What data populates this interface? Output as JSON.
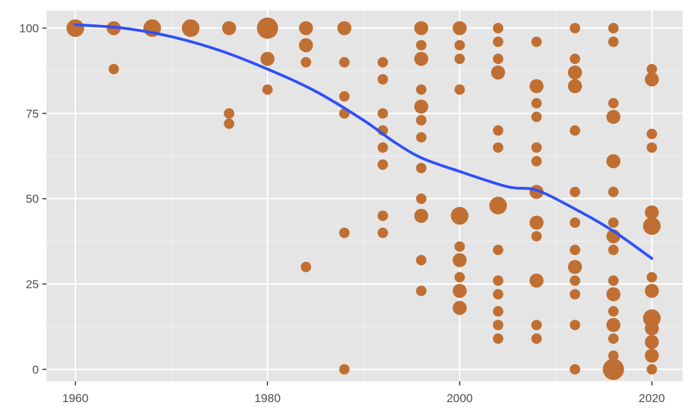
{
  "chart_data": {
    "type": "scatter",
    "title": "",
    "xlabel": "",
    "ylabel": "",
    "xlim": [
      1957,
      2023.2
    ],
    "ylim": [
      -3.5,
      105.2
    ],
    "x_ticks": [
      1960,
      1980,
      2000,
      2020
    ],
    "x_minor_ticks": [
      1970,
      1990,
      2010
    ],
    "y_ticks": [
      0,
      25,
      50,
      75,
      100
    ],
    "y_minor_ticks": [
      12.5,
      37.5,
      62.5,
      87.5
    ],
    "grid": true,
    "legend": "none",
    "colors": {
      "panel": "#e5e5e5",
      "grid_major": "#ffffff",
      "point": "#c06f32",
      "trend": "#3050f8",
      "tick_label": "#4d4d4d"
    },
    "points": [
      {
        "x": 1960,
        "y": 100,
        "n": 3
      },
      {
        "x": 1964,
        "y": 100,
        "n": 2
      },
      {
        "x": 1964,
        "y": 88,
        "n": 1
      },
      {
        "x": 1968,
        "y": 100,
        "n": 3
      },
      {
        "x": 1972,
        "y": 100,
        "n": 3
      },
      {
        "x": 1976,
        "y": 100,
        "n": 2
      },
      {
        "x": 1976,
        "y": 75,
        "n": 1
      },
      {
        "x": 1976,
        "y": 72,
        "n": 1
      },
      {
        "x": 1980,
        "y": 100,
        "n": 4
      },
      {
        "x": 1980,
        "y": 91,
        "n": 2
      },
      {
        "x": 1980,
        "y": 82,
        "n": 1
      },
      {
        "x": 1984,
        "y": 100,
        "n": 2
      },
      {
        "x": 1984,
        "y": 95,
        "n": 2
      },
      {
        "x": 1984,
        "y": 90,
        "n": 1
      },
      {
        "x": 1984,
        "y": 30,
        "n": 1
      },
      {
        "x": 1988,
        "y": 100,
        "n": 2
      },
      {
        "x": 1988,
        "y": 90,
        "n": 1
      },
      {
        "x": 1988,
        "y": 80,
        "n": 1
      },
      {
        "x": 1988,
        "y": 75,
        "n": 1
      },
      {
        "x": 1988,
        "y": 40,
        "n": 1
      },
      {
        "x": 1988,
        "y": 0,
        "n": 1
      },
      {
        "x": 1992,
        "y": 90,
        "n": 1
      },
      {
        "x": 1992,
        "y": 85,
        "n": 1
      },
      {
        "x": 1992,
        "y": 75,
        "n": 1
      },
      {
        "x": 1992,
        "y": 70,
        "n": 1
      },
      {
        "x": 1992,
        "y": 65,
        "n": 1
      },
      {
        "x": 1992,
        "y": 60,
        "n": 1
      },
      {
        "x": 1992,
        "y": 45,
        "n": 1
      },
      {
        "x": 1992,
        "y": 40,
        "n": 1
      },
      {
        "x": 1996,
        "y": 100,
        "n": 2
      },
      {
        "x": 1996,
        "y": 95,
        "n": 1
      },
      {
        "x": 1996,
        "y": 91,
        "n": 2
      },
      {
        "x": 1996,
        "y": 82,
        "n": 1
      },
      {
        "x": 1996,
        "y": 77,
        "n": 2
      },
      {
        "x": 1996,
        "y": 73,
        "n": 1
      },
      {
        "x": 1996,
        "y": 68,
        "n": 1
      },
      {
        "x": 1996,
        "y": 59,
        "n": 1
      },
      {
        "x": 1996,
        "y": 50,
        "n": 1
      },
      {
        "x": 1996,
        "y": 45,
        "n": 2
      },
      {
        "x": 1996,
        "y": 32,
        "n": 1
      },
      {
        "x": 1996,
        "y": 23,
        "n": 1
      },
      {
        "x": 2000,
        "y": 100,
        "n": 2
      },
      {
        "x": 2000,
        "y": 95,
        "n": 1
      },
      {
        "x": 2000,
        "y": 91,
        "n": 1
      },
      {
        "x": 2000,
        "y": 82,
        "n": 1
      },
      {
        "x": 2000,
        "y": 45,
        "n": 3
      },
      {
        "x": 2000,
        "y": 36,
        "n": 1
      },
      {
        "x": 2000,
        "y": 32,
        "n": 2
      },
      {
        "x": 2000,
        "y": 27,
        "n": 1
      },
      {
        "x": 2000,
        "y": 23,
        "n": 2
      },
      {
        "x": 2000,
        "y": 18,
        "n": 2
      },
      {
        "x": 2004,
        "y": 100,
        "n": 1
      },
      {
        "x": 2004,
        "y": 96,
        "n": 1
      },
      {
        "x": 2004,
        "y": 91,
        "n": 1
      },
      {
        "x": 2004,
        "y": 87,
        "n": 2
      },
      {
        "x": 2004,
        "y": 70,
        "n": 1
      },
      {
        "x": 2004,
        "y": 65,
        "n": 1
      },
      {
        "x": 2004,
        "y": 48,
        "n": 3
      },
      {
        "x": 2004,
        "y": 35,
        "n": 1
      },
      {
        "x": 2004,
        "y": 26,
        "n": 1
      },
      {
        "x": 2004,
        "y": 22,
        "n": 1
      },
      {
        "x": 2004,
        "y": 17,
        "n": 1
      },
      {
        "x": 2004,
        "y": 13,
        "n": 1
      },
      {
        "x": 2004,
        "y": 9,
        "n": 1
      },
      {
        "x": 2008,
        "y": 96,
        "n": 1
      },
      {
        "x": 2008,
        "y": 83,
        "n": 2
      },
      {
        "x": 2008,
        "y": 78,
        "n": 1
      },
      {
        "x": 2008,
        "y": 74,
        "n": 1
      },
      {
        "x": 2008,
        "y": 65,
        "n": 1
      },
      {
        "x": 2008,
        "y": 61,
        "n": 1
      },
      {
        "x": 2008,
        "y": 52,
        "n": 2
      },
      {
        "x": 2008,
        "y": 43,
        "n": 2
      },
      {
        "x": 2008,
        "y": 39,
        "n": 1
      },
      {
        "x": 2008,
        "y": 26,
        "n": 2
      },
      {
        "x": 2008,
        "y": 13,
        "n": 1
      },
      {
        "x": 2008,
        "y": 9,
        "n": 1
      },
      {
        "x": 2012,
        "y": 100,
        "n": 1
      },
      {
        "x": 2012,
        "y": 91,
        "n": 1
      },
      {
        "x": 2012,
        "y": 87,
        "n": 2
      },
      {
        "x": 2012,
        "y": 83,
        "n": 2
      },
      {
        "x": 2012,
        "y": 70,
        "n": 1
      },
      {
        "x": 2012,
        "y": 52,
        "n": 1
      },
      {
        "x": 2012,
        "y": 43,
        "n": 1
      },
      {
        "x": 2012,
        "y": 35,
        "n": 1
      },
      {
        "x": 2012,
        "y": 30,
        "n": 2
      },
      {
        "x": 2012,
        "y": 26,
        "n": 1
      },
      {
        "x": 2012,
        "y": 22,
        "n": 1
      },
      {
        "x": 2012,
        "y": 13,
        "n": 1
      },
      {
        "x": 2012,
        "y": 0,
        "n": 1
      },
      {
        "x": 2016,
        "y": 100,
        "n": 1
      },
      {
        "x": 2016,
        "y": 96,
        "n": 1
      },
      {
        "x": 2016,
        "y": 78,
        "n": 1
      },
      {
        "x": 2016,
        "y": 74,
        "n": 2
      },
      {
        "x": 2016,
        "y": 61,
        "n": 2
      },
      {
        "x": 2016,
        "y": 52,
        "n": 1
      },
      {
        "x": 2016,
        "y": 43,
        "n": 1
      },
      {
        "x": 2016,
        "y": 39,
        "n": 2
      },
      {
        "x": 2016,
        "y": 35,
        "n": 1
      },
      {
        "x": 2016,
        "y": 26,
        "n": 1
      },
      {
        "x": 2016,
        "y": 22,
        "n": 2
      },
      {
        "x": 2016,
        "y": 17,
        "n": 1
      },
      {
        "x": 2016,
        "y": 13,
        "n": 2
      },
      {
        "x": 2016,
        "y": 9,
        "n": 1
      },
      {
        "x": 2016,
        "y": 4,
        "n": 1
      },
      {
        "x": 2016,
        "y": 0,
        "n": 4
      },
      {
        "x": 2020,
        "y": 88,
        "n": 1
      },
      {
        "x": 2020,
        "y": 85,
        "n": 2
      },
      {
        "x": 2020,
        "y": 69,
        "n": 1
      },
      {
        "x": 2020,
        "y": 65,
        "n": 1
      },
      {
        "x": 2020,
        "y": 46,
        "n": 2
      },
      {
        "x": 2020,
        "y": 42,
        "n": 3
      },
      {
        "x": 2020,
        "y": 27,
        "n": 1
      },
      {
        "x": 2020,
        "y": 23,
        "n": 2
      },
      {
        "x": 2020,
        "y": 15,
        "n": 3
      },
      {
        "x": 2020,
        "y": 12,
        "n": 2
      },
      {
        "x": 2020,
        "y": 8,
        "n": 2
      },
      {
        "x": 2020,
        "y": 4,
        "n": 2
      },
      {
        "x": 2020,
        "y": 0,
        "n": 1
      }
    ],
    "trend": {
      "x": [
        1960,
        1965,
        1970,
        1975,
        1980,
        1985,
        1990,
        1993,
        1996,
        2000,
        2005,
        2008,
        2012,
        2016,
        2020
      ],
      "y": [
        101,
        100,
        97.5,
        93.5,
        88,
        81.5,
        73,
        67,
        62,
        58,
        53.5,
        52.5,
        47,
        40.5,
        32.5
      ]
    }
  }
}
